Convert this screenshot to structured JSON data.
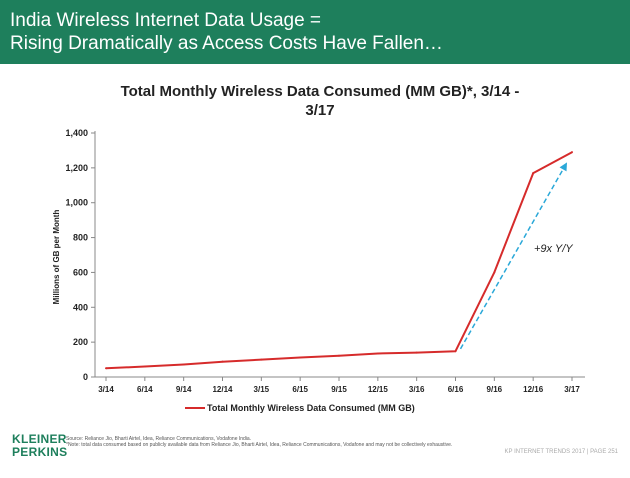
{
  "slide": {
    "title": "India Wireless Internet Data Usage =\nRising Dramatically as Access Costs Have Fallen…",
    "logo": "KLEINER\nPERKINS",
    "source": "Source: Reliance Jio, Bharti Airtel, Idea, Reliance Communications, Vodafone India.",
    "note": "*Note: total data consumed based on publicly available data from Reliance Jio, Bharti Airtel, Idea, Reliance Communications, Vodafone and may not be collectively exhaustive.",
    "footer_right": "KP INTERNET TRENDS 2017  |  PAGE 251"
  },
  "colors": {
    "header_bg": "#1e7f5c",
    "line": "#d62b2b",
    "arrow": "#2aa8d8"
  },
  "chart_data": {
    "type": "line",
    "title": "Total Monthly Wireless Data Consumed (MM GB)*, 3/14 -\n3/17",
    "xlabel": "",
    "ylabel": "Millions of GB per Month",
    "categories": [
      "3/14",
      "6/14",
      "9/14",
      "12/14",
      "3/15",
      "6/15",
      "9/15",
      "12/15",
      "3/16",
      "6/16",
      "9/16",
      "12/16",
      "3/17"
    ],
    "series": [
      {
        "name": "Total Monthly Wireless Data Consumed (MM GB)",
        "values": [
          50,
          60,
          72,
          88,
          100,
          112,
          122,
          135,
          140,
          148,
          600,
          1170,
          1290
        ]
      }
    ],
    "ylim": [
      0,
      1400
    ],
    "yticks": [
      "0",
      "200",
      "400",
      "600",
      "800",
      "1,000",
      "1,200",
      "1,400"
    ],
    "annotation": {
      "text": "+9x Y/Y",
      "from": {
        "x": "6/16",
        "y": 150
      },
      "to": {
        "x": "3/17",
        "y": 1260
      }
    },
    "legend": "bottom",
    "grid": false
  }
}
